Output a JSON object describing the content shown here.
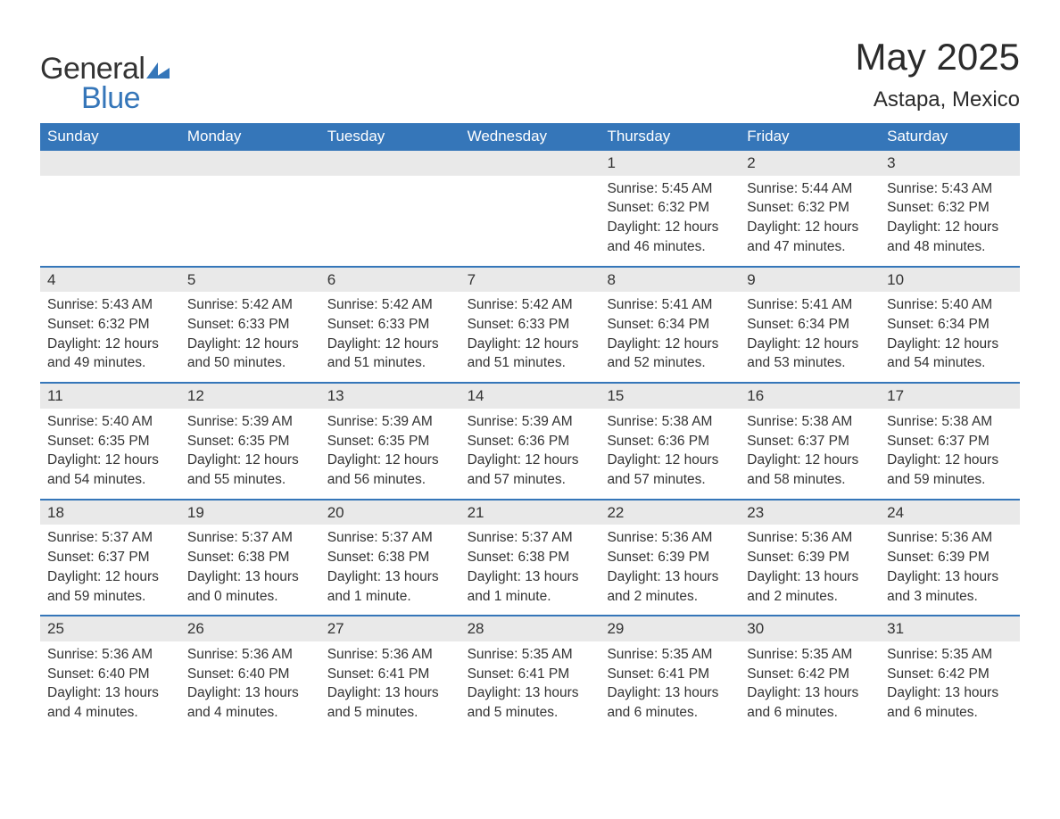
{
  "logo": {
    "part1": "General",
    "part2": "Blue"
  },
  "title": "May 2025",
  "location": "Astapa, Mexico",
  "colors": {
    "header_bg": "#3576b9",
    "header_text": "#ffffff",
    "daynum_bg": "#e9e9e9",
    "week_border": "#3576b9",
    "text": "#333333",
    "background": "#ffffff"
  },
  "dow": [
    "Sunday",
    "Monday",
    "Tuesday",
    "Wednesday",
    "Thursday",
    "Friday",
    "Saturday"
  ],
  "weeks": [
    [
      {
        "n": "",
        "sunrise": "",
        "sunset": "",
        "daylight": ""
      },
      {
        "n": "",
        "sunrise": "",
        "sunset": "",
        "daylight": ""
      },
      {
        "n": "",
        "sunrise": "",
        "sunset": "",
        "daylight": ""
      },
      {
        "n": "",
        "sunrise": "",
        "sunset": "",
        "daylight": ""
      },
      {
        "n": "1",
        "sunrise": "Sunrise: 5:45 AM",
        "sunset": "Sunset: 6:32 PM",
        "daylight": "Daylight: 12 hours and 46 minutes."
      },
      {
        "n": "2",
        "sunrise": "Sunrise: 5:44 AM",
        "sunset": "Sunset: 6:32 PM",
        "daylight": "Daylight: 12 hours and 47 minutes."
      },
      {
        "n": "3",
        "sunrise": "Sunrise: 5:43 AM",
        "sunset": "Sunset: 6:32 PM",
        "daylight": "Daylight: 12 hours and 48 minutes."
      }
    ],
    [
      {
        "n": "4",
        "sunrise": "Sunrise: 5:43 AM",
        "sunset": "Sunset: 6:32 PM",
        "daylight": "Daylight: 12 hours and 49 minutes."
      },
      {
        "n": "5",
        "sunrise": "Sunrise: 5:42 AM",
        "sunset": "Sunset: 6:33 PM",
        "daylight": "Daylight: 12 hours and 50 minutes."
      },
      {
        "n": "6",
        "sunrise": "Sunrise: 5:42 AM",
        "sunset": "Sunset: 6:33 PM",
        "daylight": "Daylight: 12 hours and 51 minutes."
      },
      {
        "n": "7",
        "sunrise": "Sunrise: 5:42 AM",
        "sunset": "Sunset: 6:33 PM",
        "daylight": "Daylight: 12 hours and 51 minutes."
      },
      {
        "n": "8",
        "sunrise": "Sunrise: 5:41 AM",
        "sunset": "Sunset: 6:34 PM",
        "daylight": "Daylight: 12 hours and 52 minutes."
      },
      {
        "n": "9",
        "sunrise": "Sunrise: 5:41 AM",
        "sunset": "Sunset: 6:34 PM",
        "daylight": "Daylight: 12 hours and 53 minutes."
      },
      {
        "n": "10",
        "sunrise": "Sunrise: 5:40 AM",
        "sunset": "Sunset: 6:34 PM",
        "daylight": "Daylight: 12 hours and 54 minutes."
      }
    ],
    [
      {
        "n": "11",
        "sunrise": "Sunrise: 5:40 AM",
        "sunset": "Sunset: 6:35 PM",
        "daylight": "Daylight: 12 hours and 54 minutes."
      },
      {
        "n": "12",
        "sunrise": "Sunrise: 5:39 AM",
        "sunset": "Sunset: 6:35 PM",
        "daylight": "Daylight: 12 hours and 55 minutes."
      },
      {
        "n": "13",
        "sunrise": "Sunrise: 5:39 AM",
        "sunset": "Sunset: 6:35 PM",
        "daylight": "Daylight: 12 hours and 56 minutes."
      },
      {
        "n": "14",
        "sunrise": "Sunrise: 5:39 AM",
        "sunset": "Sunset: 6:36 PM",
        "daylight": "Daylight: 12 hours and 57 minutes."
      },
      {
        "n": "15",
        "sunrise": "Sunrise: 5:38 AM",
        "sunset": "Sunset: 6:36 PM",
        "daylight": "Daylight: 12 hours and 57 minutes."
      },
      {
        "n": "16",
        "sunrise": "Sunrise: 5:38 AM",
        "sunset": "Sunset: 6:37 PM",
        "daylight": "Daylight: 12 hours and 58 minutes."
      },
      {
        "n": "17",
        "sunrise": "Sunrise: 5:38 AM",
        "sunset": "Sunset: 6:37 PM",
        "daylight": "Daylight: 12 hours and 59 minutes."
      }
    ],
    [
      {
        "n": "18",
        "sunrise": "Sunrise: 5:37 AM",
        "sunset": "Sunset: 6:37 PM",
        "daylight": "Daylight: 12 hours and 59 minutes."
      },
      {
        "n": "19",
        "sunrise": "Sunrise: 5:37 AM",
        "sunset": "Sunset: 6:38 PM",
        "daylight": "Daylight: 13 hours and 0 minutes."
      },
      {
        "n": "20",
        "sunrise": "Sunrise: 5:37 AM",
        "sunset": "Sunset: 6:38 PM",
        "daylight": "Daylight: 13 hours and 1 minute."
      },
      {
        "n": "21",
        "sunrise": "Sunrise: 5:37 AM",
        "sunset": "Sunset: 6:38 PM",
        "daylight": "Daylight: 13 hours and 1 minute."
      },
      {
        "n": "22",
        "sunrise": "Sunrise: 5:36 AM",
        "sunset": "Sunset: 6:39 PM",
        "daylight": "Daylight: 13 hours and 2 minutes."
      },
      {
        "n": "23",
        "sunrise": "Sunrise: 5:36 AM",
        "sunset": "Sunset: 6:39 PM",
        "daylight": "Daylight: 13 hours and 2 minutes."
      },
      {
        "n": "24",
        "sunrise": "Sunrise: 5:36 AM",
        "sunset": "Sunset: 6:39 PM",
        "daylight": "Daylight: 13 hours and 3 minutes."
      }
    ],
    [
      {
        "n": "25",
        "sunrise": "Sunrise: 5:36 AM",
        "sunset": "Sunset: 6:40 PM",
        "daylight": "Daylight: 13 hours and 4 minutes."
      },
      {
        "n": "26",
        "sunrise": "Sunrise: 5:36 AM",
        "sunset": "Sunset: 6:40 PM",
        "daylight": "Daylight: 13 hours and 4 minutes."
      },
      {
        "n": "27",
        "sunrise": "Sunrise: 5:36 AM",
        "sunset": "Sunset: 6:41 PM",
        "daylight": "Daylight: 13 hours and 5 minutes."
      },
      {
        "n": "28",
        "sunrise": "Sunrise: 5:35 AM",
        "sunset": "Sunset: 6:41 PM",
        "daylight": "Daylight: 13 hours and 5 minutes."
      },
      {
        "n": "29",
        "sunrise": "Sunrise: 5:35 AM",
        "sunset": "Sunset: 6:41 PM",
        "daylight": "Daylight: 13 hours and 6 minutes."
      },
      {
        "n": "30",
        "sunrise": "Sunrise: 5:35 AM",
        "sunset": "Sunset: 6:42 PM",
        "daylight": "Daylight: 13 hours and 6 minutes."
      },
      {
        "n": "31",
        "sunrise": "Sunrise: 5:35 AM",
        "sunset": "Sunset: 6:42 PM",
        "daylight": "Daylight: 13 hours and 6 minutes."
      }
    ]
  ]
}
